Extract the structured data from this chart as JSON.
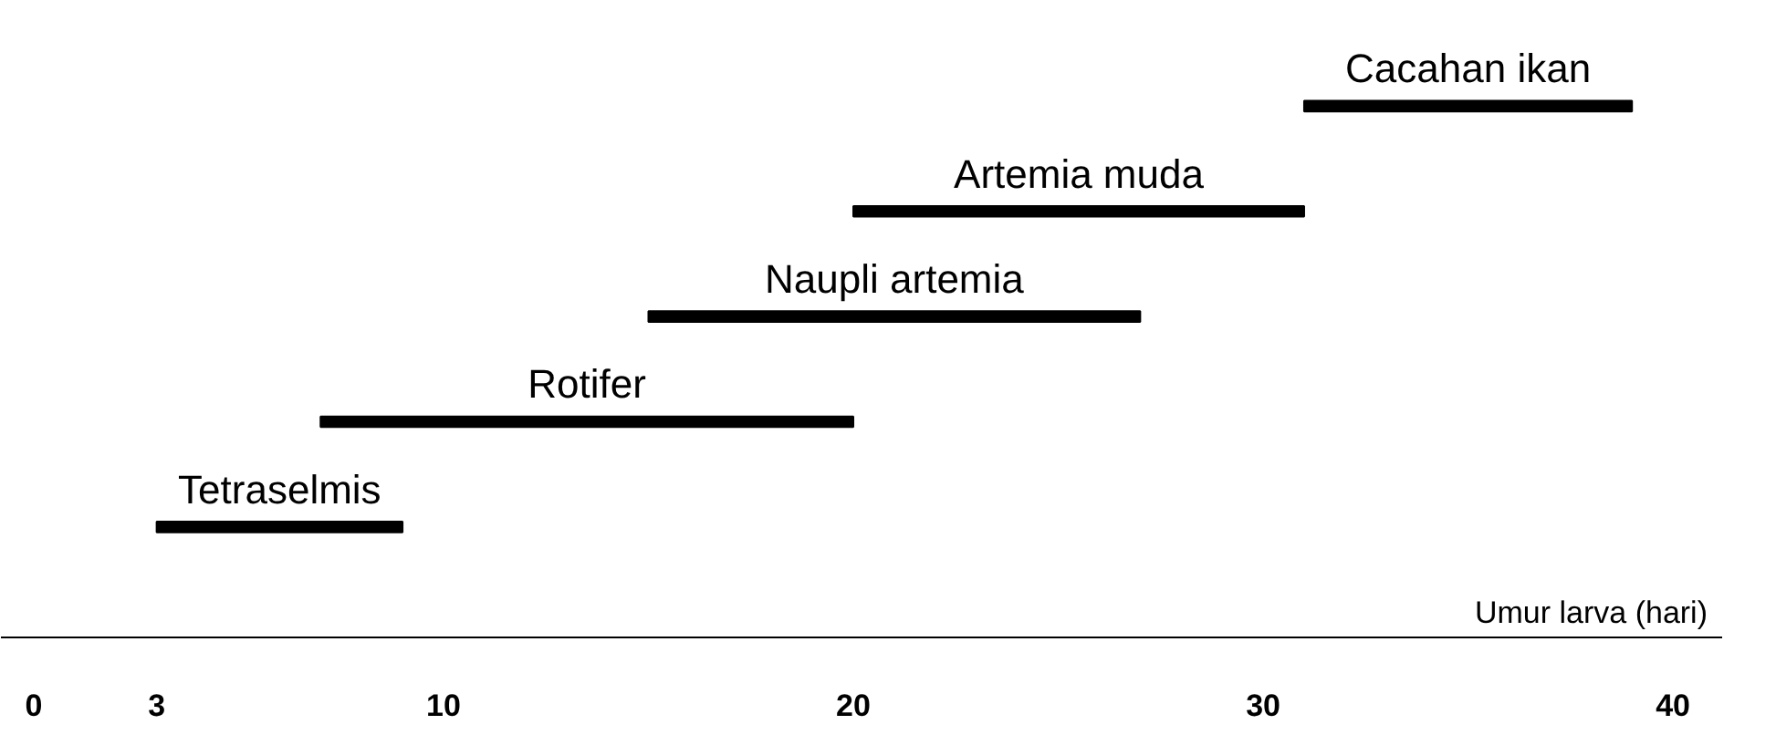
{
  "chart_data": {
    "type": "bar",
    "orientation": "horizontal",
    "xlabel": "Umur larva (hari)",
    "categories": [
      "Cacahan ikan",
      "Artemia muda",
      "Naupli artemia",
      "Rotifer",
      "Tetraselmis"
    ],
    "base": [
      31,
      20,
      15,
      7,
      3
    ],
    "values": [
      8,
      11,
      12,
      13,
      6
    ],
    "color": "#000000",
    "xlim": [
      -0.8,
      41.2
    ],
    "xticks": [
      0,
      3,
      10,
      20,
      30,
      40
    ],
    "grid": false
  }
}
